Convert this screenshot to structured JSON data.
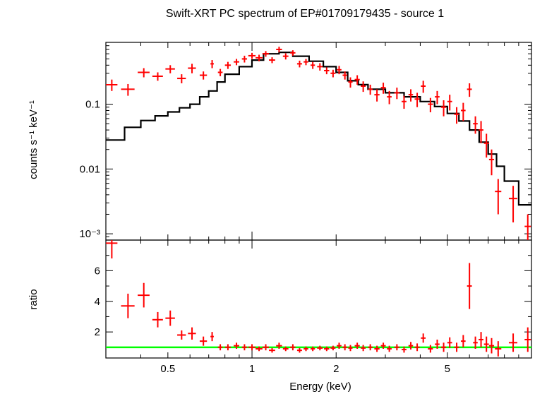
{
  "chart_data": [
    {
      "type": "line",
      "panel": "spectrum",
      "title": "Swift-XRT PC spectrum of EP#01709179435 - source 1",
      "ylabel": "counts s⁻¹ keV⁻¹",
      "xlabel": "Energy (keV)",
      "xscale": "log",
      "yscale": "log",
      "xlim": [
        0.3,
        10
      ],
      "ylim": [
        0.0008,
        0.9
      ],
      "yticks": [
        {
          "value": 0.1,
          "label": "0.1"
        },
        {
          "value": 0.01,
          "label": "0.01"
        },
        {
          "value": 0.001,
          "label": "10⁻³"
        }
      ],
      "model_color": "#000000",
      "data_color": "#ff0000",
      "model": {
        "name": "model",
        "steps": [
          [
            0.3,
            0.35,
            0.028
          ],
          [
            0.35,
            0.4,
            0.044
          ],
          [
            0.4,
            0.45,
            0.056
          ],
          [
            0.45,
            0.5,
            0.066
          ],
          [
            0.5,
            0.55,
            0.076
          ],
          [
            0.55,
            0.6,
            0.088
          ],
          [
            0.6,
            0.65,
            0.1
          ],
          [
            0.65,
            0.7,
            0.13
          ],
          [
            0.7,
            0.75,
            0.16
          ],
          [
            0.75,
            0.8,
            0.22
          ],
          [
            0.8,
            0.9,
            0.29
          ],
          [
            0.9,
            1.0,
            0.38
          ],
          [
            1.0,
            1.1,
            0.48
          ],
          [
            1.1,
            1.25,
            0.6
          ],
          [
            1.25,
            1.4,
            0.63
          ],
          [
            1.4,
            1.6,
            0.55
          ],
          [
            1.6,
            1.8,
            0.46
          ],
          [
            1.8,
            2.0,
            0.38
          ],
          [
            2.0,
            2.2,
            0.31
          ],
          [
            2.2,
            2.4,
            0.23
          ],
          [
            2.4,
            2.6,
            0.2
          ],
          [
            2.6,
            3.0,
            0.17
          ],
          [
            3.0,
            3.5,
            0.15
          ],
          [
            3.5,
            4.0,
            0.13
          ],
          [
            4.0,
            4.5,
            0.11
          ],
          [
            4.5,
            5.0,
            0.092
          ],
          [
            5.0,
            5.5,
            0.072
          ],
          [
            5.5,
            6.0,
            0.055
          ],
          [
            6.0,
            6.5,
            0.04
          ],
          [
            6.5,
            7.0,
            0.026
          ],
          [
            7.0,
            7.5,
            0.017
          ],
          [
            7.5,
            8.0,
            0.011
          ],
          [
            8.0,
            9.0,
            0.0065
          ],
          [
            9.0,
            10.0,
            0.0028
          ]
        ]
      },
      "series": [
        {
          "name": "data",
          "points": [
            [
              0.315,
              0.2,
              0.015,
              0.04
            ],
            [
              0.36,
              0.17,
              0.02,
              0.035
            ],
            [
              0.41,
              0.31,
              0.02,
              0.05
            ],
            [
              0.46,
              0.27,
              0.02,
              0.04
            ],
            [
              0.51,
              0.35,
              0.02,
              0.05
            ],
            [
              0.56,
              0.25,
              0.02,
              0.04
            ],
            [
              0.61,
              0.36,
              0.02,
              0.06
            ],
            [
              0.67,
              0.28,
              0.02,
              0.04
            ],
            [
              0.72,
              0.42,
              0.01,
              0.06
            ],
            [
              0.77,
              0.31,
              0.015,
              0.04
            ],
            [
              0.82,
              0.4,
              0.02,
              0.05
            ],
            [
              0.88,
              0.45,
              0.02,
              0.05
            ],
            [
              0.94,
              0.5,
              0.02,
              0.06
            ],
            [
              1.0,
              0.56,
              0.03,
              0.06
            ],
            [
              1.06,
              0.52,
              0.03,
              0.06
            ],
            [
              1.12,
              0.6,
              0.03,
              0.06
            ],
            [
              1.18,
              0.48,
              0.03,
              0.05
            ],
            [
              1.25,
              0.7,
              0.03,
              0.07
            ],
            [
              1.32,
              0.55,
              0.03,
              0.06
            ],
            [
              1.4,
              0.62,
              0.03,
              0.06
            ],
            [
              1.48,
              0.42,
              0.03,
              0.05
            ],
            [
              1.56,
              0.45,
              0.03,
              0.05
            ],
            [
              1.65,
              0.4,
              0.03,
              0.05
            ],
            [
              1.75,
              0.38,
              0.04,
              0.05
            ],
            [
              1.85,
              0.33,
              0.04,
              0.04
            ],
            [
              1.95,
              0.3,
              0.04,
              0.04
            ],
            [
              2.05,
              0.34,
              0.04,
              0.05
            ],
            [
              2.15,
              0.28,
              0.04,
              0.04
            ],
            [
              2.25,
              0.22,
              0.04,
              0.04
            ],
            [
              2.38,
              0.24,
              0.05,
              0.04
            ],
            [
              2.5,
              0.19,
              0.05,
              0.035
            ],
            [
              2.65,
              0.17,
              0.05,
              0.03
            ],
            [
              2.8,
              0.14,
              0.06,
              0.03
            ],
            [
              2.95,
              0.18,
              0.06,
              0.035
            ],
            [
              3.1,
              0.13,
              0.06,
              0.03
            ],
            [
              3.3,
              0.15,
              0.07,
              0.03
            ],
            [
              3.5,
              0.11,
              0.07,
              0.025
            ],
            [
              3.7,
              0.14,
              0.07,
              0.03
            ],
            [
              3.9,
              0.12,
              0.08,
              0.03
            ],
            [
              4.1,
              0.19,
              0.08,
              0.04
            ],
            [
              4.35,
              0.1,
              0.09,
              0.025
            ],
            [
              4.6,
              0.13,
              0.09,
              0.03
            ],
            [
              4.85,
              0.09,
              0.1,
              0.025
            ],
            [
              5.1,
              0.11,
              0.1,
              0.03
            ],
            [
              5.4,
              0.07,
              0.11,
              0.02
            ],
            [
              5.7,
              0.08,
              0.11,
              0.025
            ],
            [
              6.0,
              0.17,
              0.12,
              0.04
            ],
            [
              6.3,
              0.05,
              0.12,
              0.015
            ],
            [
              6.6,
              0.04,
              0.13,
              0.015
            ],
            [
              6.9,
              0.025,
              0.14,
              0.01
            ],
            [
              7.2,
              0.014,
              0.15,
              0.006
            ],
            [
              7.6,
              0.0045,
              0.2,
              0.0025
            ],
            [
              8.6,
              0.0035,
              0.3,
              0.002
            ],
            [
              9.7,
              0.0013,
              0.25,
              0.0007
            ]
          ]
        }
      ]
    },
    {
      "type": "line",
      "panel": "ratio",
      "ylabel": "ratio",
      "xlabel": "Energy (keV)",
      "xscale": "log",
      "xlim": [
        0.3,
        10
      ],
      "ylim": [
        0.3,
        8.0
      ],
      "yticks": [
        {
          "value": 2,
          "label": "2"
        },
        {
          "value": 4,
          "label": "4"
        },
        {
          "value": 6,
          "label": "6"
        }
      ],
      "xticks": [
        {
          "value": 0.5,
          "label": "0.5"
        },
        {
          "value": 1,
          "label": "1"
        },
        {
          "value": 2,
          "label": "2"
        },
        {
          "value": 5,
          "label": "5"
        }
      ],
      "reference_line": {
        "value": 1.0,
        "color": "#00ff00"
      },
      "series": [
        {
          "name": "data/model",
          "points": [
            [
              0.315,
              7.8,
              0.015,
              1.0
            ],
            [
              0.36,
              3.7,
              0.02,
              0.8
            ],
            [
              0.41,
              4.4,
              0.02,
              0.8
            ],
            [
              0.46,
              2.8,
              0.02,
              0.5
            ],
            [
              0.51,
              2.9,
              0.02,
              0.5
            ],
            [
              0.56,
              1.8,
              0.02,
              0.3
            ],
            [
              0.61,
              1.9,
              0.02,
              0.4
            ],
            [
              0.67,
              1.4,
              0.02,
              0.3
            ],
            [
              0.72,
              1.7,
              0.01,
              0.3
            ],
            [
              0.77,
              1.0,
              0.015,
              0.2
            ],
            [
              0.82,
              1.0,
              0.02,
              0.2
            ],
            [
              0.88,
              1.1,
              0.02,
              0.2
            ],
            [
              0.94,
              1.0,
              0.02,
              0.2
            ],
            [
              1.0,
              1.0,
              0.03,
              0.2
            ],
            [
              1.06,
              0.9,
              0.03,
              0.15
            ],
            [
              1.12,
              1.0,
              0.03,
              0.2
            ],
            [
              1.18,
              0.8,
              0.03,
              0.15
            ],
            [
              1.25,
              1.1,
              0.03,
              0.2
            ],
            [
              1.32,
              0.9,
              0.03,
              0.15
            ],
            [
              1.4,
              1.0,
              0.03,
              0.2
            ],
            [
              1.48,
              0.8,
              0.03,
              0.15
            ],
            [
              1.56,
              0.9,
              0.03,
              0.15
            ],
            [
              1.65,
              0.9,
              0.03,
              0.15
            ],
            [
              1.75,
              0.95,
              0.04,
              0.15
            ],
            [
              1.85,
              0.9,
              0.04,
              0.15
            ],
            [
              1.95,
              0.95,
              0.04,
              0.15
            ],
            [
              2.05,
              1.1,
              0.04,
              0.2
            ],
            [
              2.15,
              1.0,
              0.04,
              0.2
            ],
            [
              2.25,
              0.95,
              0.04,
              0.2
            ],
            [
              2.38,
              1.1,
              0.05,
              0.2
            ],
            [
              2.5,
              0.95,
              0.05,
              0.2
            ],
            [
              2.65,
              1.0,
              0.05,
              0.2
            ],
            [
              2.8,
              0.9,
              0.06,
              0.2
            ],
            [
              2.95,
              1.1,
              0.06,
              0.2
            ],
            [
              3.1,
              0.9,
              0.06,
              0.2
            ],
            [
              3.3,
              1.0,
              0.07,
              0.2
            ],
            [
              3.5,
              0.85,
              0.07,
              0.2
            ],
            [
              3.7,
              1.1,
              0.07,
              0.25
            ],
            [
              3.9,
              1.0,
              0.08,
              0.25
            ],
            [
              4.1,
              1.6,
              0.08,
              0.3
            ],
            [
              4.35,
              0.9,
              0.09,
              0.25
            ],
            [
              4.6,
              1.2,
              0.09,
              0.3
            ],
            [
              4.85,
              1.0,
              0.1,
              0.3
            ],
            [
              5.1,
              1.3,
              0.1,
              0.35
            ],
            [
              5.4,
              1.0,
              0.11,
              0.3
            ],
            [
              5.7,
              1.4,
              0.11,
              0.4
            ],
            [
              6.0,
              5.0,
              0.12,
              1.5
            ],
            [
              6.3,
              1.3,
              0.12,
              0.4
            ],
            [
              6.6,
              1.5,
              0.13,
              0.5
            ],
            [
              6.9,
              1.2,
              0.14,
              0.5
            ],
            [
              7.2,
              1.1,
              0.15,
              0.5
            ],
            [
              7.6,
              0.9,
              0.2,
              0.5
            ],
            [
              8.6,
              1.3,
              0.3,
              0.6
            ],
            [
              9.7,
              1.5,
              0.25,
              0.8
            ]
          ]
        }
      ]
    }
  ]
}
